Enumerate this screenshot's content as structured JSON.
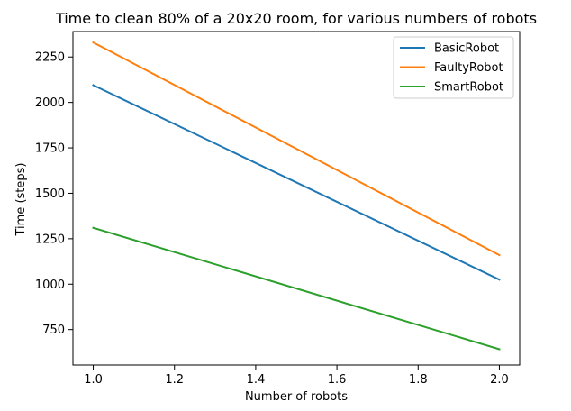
{
  "chart_data": {
    "type": "line",
    "title": "Time to clean 80% of a 20x20 room, for various numbers of robots",
    "xlabel": "Number of robots",
    "ylabel": "Time (steps)",
    "x": [
      1.0,
      2.0
    ],
    "xlim": [
      0.95,
      2.05
    ],
    "ylim": [
      555,
      2390
    ],
    "xticks": [
      "1.0",
      "1.2",
      "1.4",
      "1.6",
      "1.8",
      "2.0"
    ],
    "yticks": [
      "750",
      "1000",
      "1250",
      "1500",
      "1750",
      "2000",
      "2250"
    ],
    "grid": false,
    "legend_position": "top-right",
    "series": [
      {
        "name": "BasicRobot",
        "values": [
          2095,
          1025
        ],
        "color": "#1f77b4"
      },
      {
        "name": "FaultyRobot",
        "values": [
          2330,
          1160
        ],
        "color": "#ff7f0e"
      },
      {
        "name": "SmartRobot",
        "values": [
          1310,
          642
        ],
        "color": "#2ca02c"
      }
    ]
  }
}
